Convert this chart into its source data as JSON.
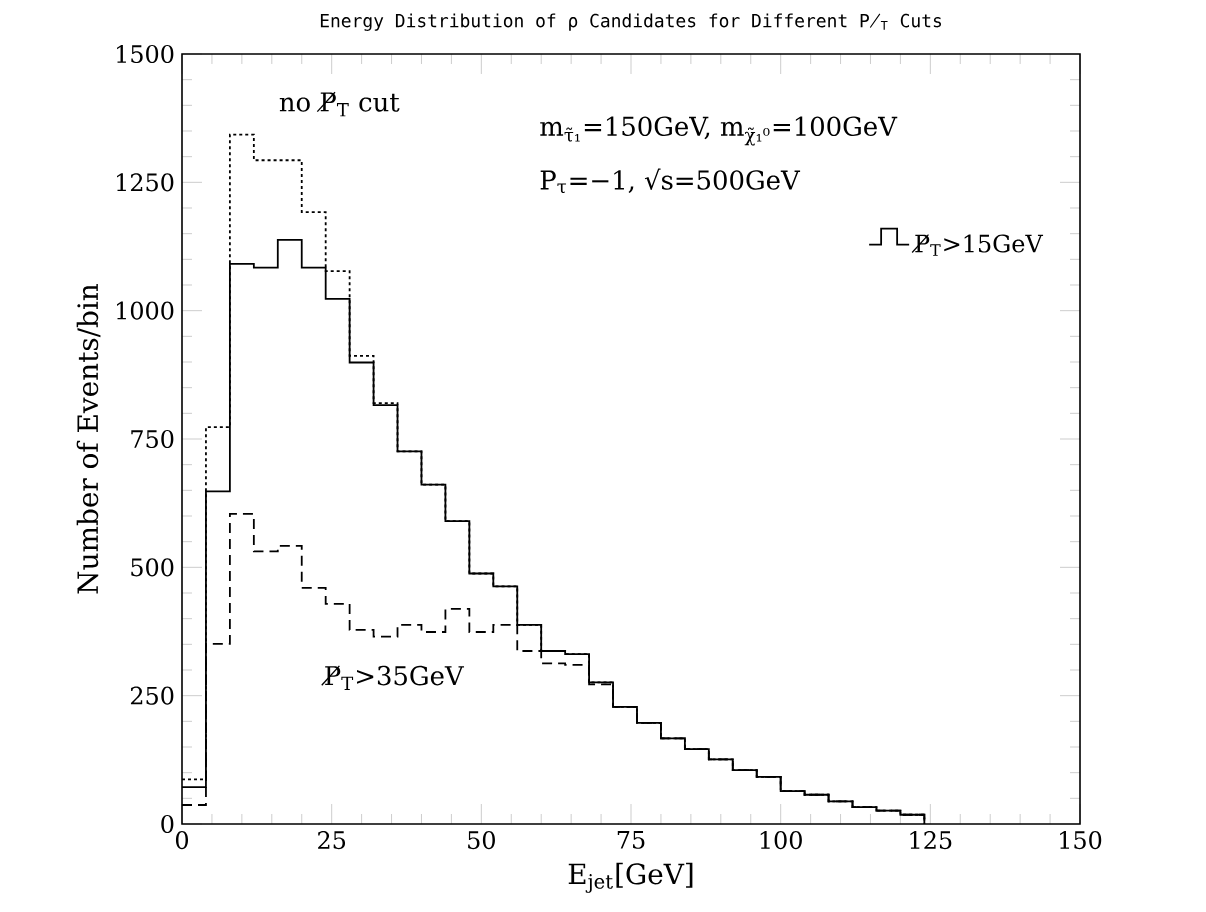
{
  "chart_data": {
    "type": "step",
    "title": "Energy Distribution of ρ Candidates for Different P̸$_{T}$ Cuts",
    "xlabel": "E$_{jet}$[GeV]",
    "ylabel": "Number of Events/bin",
    "x": [
      0,
      4,
      8,
      12,
      16,
      20,
      24,
      28,
      32,
      36,
      40,
      44,
      48,
      52,
      56,
      60,
      64,
      68,
      72,
      76,
      80,
      84,
      88,
      92,
      96,
      100,
      104,
      108,
      112,
      116,
      120,
      124
    ],
    "series": [
      {
        "color": "#000000",
        "line_style": "dotted",
        "values": [
          87,
          773,
          1343,
          1293,
          1293,
          1192,
          1077,
          912,
          820,
          726,
          661,
          590,
          488,
          463,
          388,
          337,
          331,
          276,
          228,
          197,
          167,
          146,
          126,
          105,
          92,
          64,
          57,
          44,
          33,
          26,
          18,
          0
        ]
      },
      {
        "name": "P̸$_{T}$>15GeV",
        "color": "#000000",
        "line_style": "solid",
        "values": [
          72,
          648,
          1091,
          1084,
          1138,
          1084,
          1023,
          899,
          816,
          726,
          661,
          590,
          488,
          463,
          388,
          337,
          331,
          276,
          228,
          197,
          167,
          146,
          126,
          105,
          92,
          64,
          57,
          44,
          33,
          26,
          18,
          0
        ]
      },
      {
        "color": "#000000",
        "line_style": "dashed",
        "values": [
          37,
          351,
          604,
          531,
          542,
          460,
          429,
          378,
          365,
          388,
          374,
          419,
          374,
          388,
          337,
          313,
          310,
          272,
          228,
          197,
          167,
          146,
          126,
          105,
          92,
          64,
          57,
          44,
          33,
          26,
          18,
          0
        ]
      }
    ],
    "xlim": [
      0,
      150
    ],
    "ylim": [
      0,
      1500
    ],
    "xticks": [
      0,
      25,
      50,
      75,
      100,
      125,
      150
    ],
    "yticks": [
      0,
      250,
      500,
      750,
      1000,
      1250,
      1500
    ],
    "legend": "top right",
    "annotations": [
      "no P̸$_{T}$ cut",
      "P̸$_{T}$>35GeV",
      "m$_{τ̃₁}$=150GeV, m$_{χ̃₁⁰}$=100GeV",
      "P$_{τ}$=−1, √s=500GeV"
    ]
  }
}
